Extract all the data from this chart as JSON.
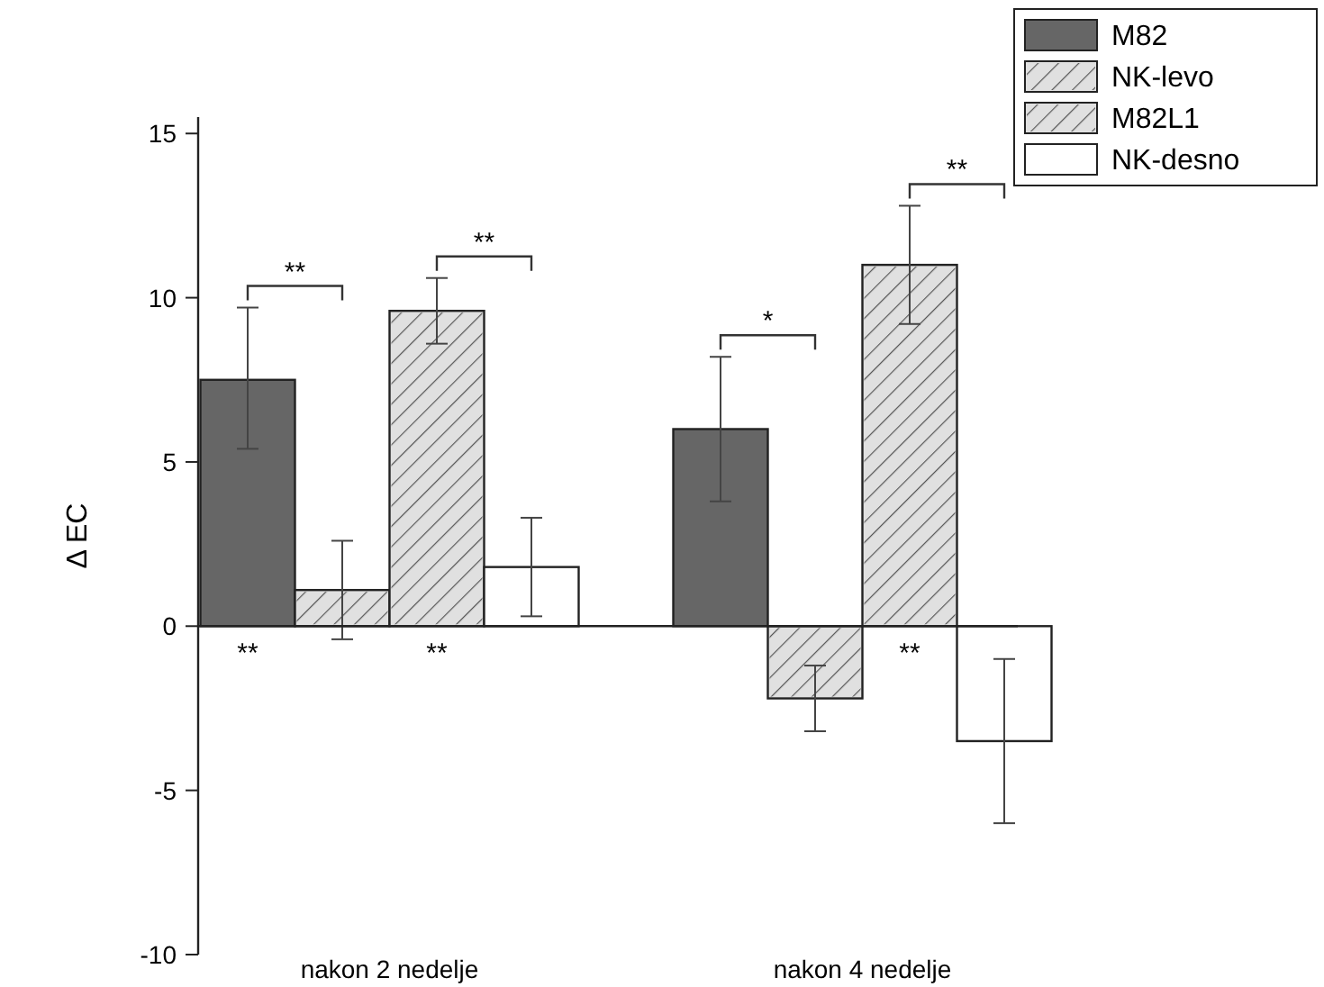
{
  "chart_data": {
    "type": "bar",
    "ylabel": "Δ EC",
    "categories": [
      "nakon 2 nedelje",
      "nakon 4 nedelje"
    ],
    "series": [
      {
        "name": "M82",
        "color": "#666666",
        "values": [
          7.5,
          6.0
        ],
        "errors": [
          [
            5.4,
            9.7
          ],
          [
            3.8,
            8.2
          ]
        ]
      },
      {
        "name": "NK-levo",
        "color": "#e0e0e0",
        "values": [
          1.1,
          -2.2
        ],
        "errors": [
          [
            -0.4,
            2.6
          ],
          [
            -3.2,
            -1.2
          ]
        ]
      },
      {
        "name": "M82L1",
        "color": "#e0e0e0",
        "values": [
          9.6,
          11.0
        ],
        "errors": [
          [
            8.6,
            10.6
          ],
          [
            9.2,
            12.8
          ]
        ]
      },
      {
        "name": "NK-desno",
        "color": "#ffffff",
        "values": [
          1.8,
          -3.5
        ],
        "errors": [
          [
            0.3,
            3.3
          ],
          [
            -6.0,
            -1.0
          ]
        ]
      }
    ],
    "ylim": [
      -10,
      15.5
    ],
    "yticks": [
      -10,
      -5,
      0,
      5,
      10,
      15
    ],
    "legend": "top right",
    "annotations": [
      "**",
      "**",
      "*",
      "**",
      "**",
      "**",
      "**"
    ]
  }
}
